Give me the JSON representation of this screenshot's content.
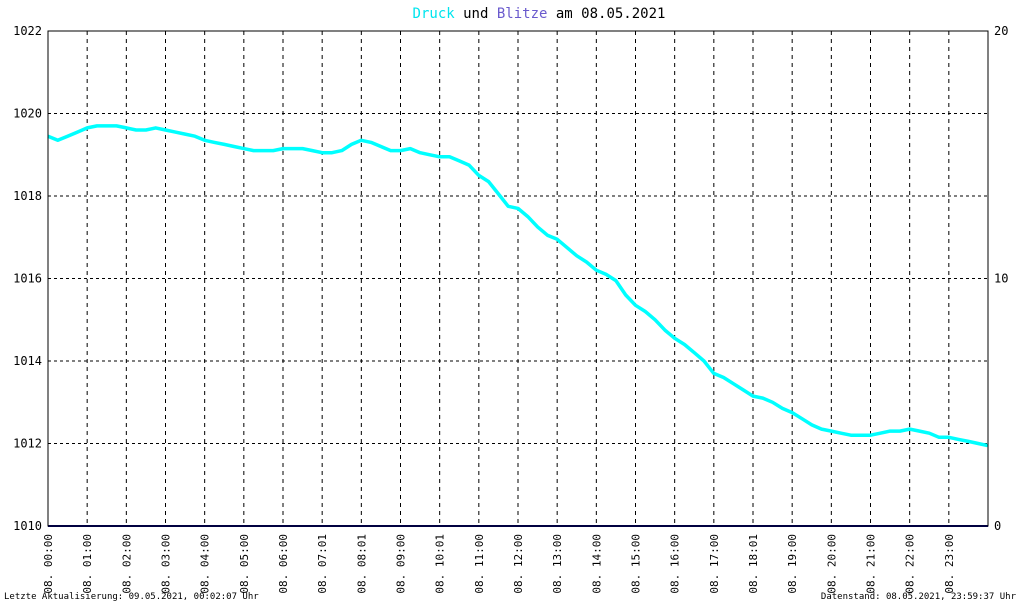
{
  "title": {
    "part1": "Druck",
    "part2": " und ",
    "part3": "Blitze",
    "part4": " am 08.05.2021"
  },
  "colors": {
    "pressure": "#00ffff",
    "lightning": "#6a5acd",
    "baseline": "#000080",
    "grid": "#000000",
    "text": "#000000",
    "background": "#ffffff"
  },
  "footer": {
    "left": "Letzte Aktualisierung: 09.05.2021, 00:02:07 Uhr",
    "right": "Datenstand: 08.05.2021, 23:59:37 Uhr"
  },
  "chart_data": {
    "type": "line",
    "title": "Druck und Blitze am 08.05.2021",
    "ylim": [
      1010,
      1022
    ],
    "ylim_right": [
      0,
      20
    ],
    "y_ticks": [
      "1010",
      "1012",
      "1014",
      "1016",
      "1018",
      "1020",
      "1022"
    ],
    "y_ticks_right": [
      "0",
      "10",
      "20"
    ],
    "x_range_hours": [
      0,
      24
    ],
    "x_ticks": [
      {
        "h": 0,
        "label": "08. 00:00"
      },
      {
        "h": 1,
        "label": "08. 01:00"
      },
      {
        "h": 2,
        "label": "08. 02:00"
      },
      {
        "h": 3,
        "label": "08. 03:00"
      },
      {
        "h": 4,
        "label": "08. 04:00"
      },
      {
        "h": 5,
        "label": "08. 05:00"
      },
      {
        "h": 6,
        "label": "08. 06:00"
      },
      {
        "h": 7,
        "label": "08. 07:01"
      },
      {
        "h": 8,
        "label": "08. 08:01"
      },
      {
        "h": 9,
        "label": "08. 09:00"
      },
      {
        "h": 10,
        "label": "08. 10:01"
      },
      {
        "h": 11,
        "label": "08. 11:00"
      },
      {
        "h": 12,
        "label": "08. 12:00"
      },
      {
        "h": 13,
        "label": "08. 13:00"
      },
      {
        "h": 14,
        "label": "08. 14:00"
      },
      {
        "h": 15,
        "label": "08. 15:00"
      },
      {
        "h": 16,
        "label": "08. 16:00"
      },
      {
        "h": 17,
        "label": "08. 17:00"
      },
      {
        "h": 18,
        "label": "08. 18:01"
      },
      {
        "h": 19,
        "label": "08. 19:00"
      },
      {
        "h": 20,
        "label": "08. 20:00"
      },
      {
        "h": 21,
        "label": "08. 21:00"
      },
      {
        "h": 22,
        "label": "08. 22:00"
      },
      {
        "h": 23,
        "label": "08. 23:00"
      }
    ],
    "grid": true,
    "series": [
      {
        "name": "Druck",
        "axis": "left",
        "x": [
          0,
          0.25,
          0.5,
          0.75,
          1,
          1.25,
          1.5,
          1.75,
          2,
          2.25,
          2.5,
          2.75,
          3,
          3.25,
          3.5,
          3.75,
          4,
          4.25,
          4.5,
          4.75,
          5,
          5.25,
          5.5,
          5.75,
          6,
          6.25,
          6.5,
          6.75,
          7,
          7.25,
          7.5,
          7.75,
          8,
          8.25,
          8.5,
          8.75,
          9,
          9.25,
          9.5,
          9.75,
          10,
          10.25,
          10.5,
          10.75,
          11,
          11.25,
          11.5,
          11.75,
          12,
          12.25,
          12.5,
          12.75,
          13,
          13.25,
          13.5,
          13.75,
          14,
          14.25,
          14.5,
          14.75,
          15,
          15.25,
          15.5,
          15.75,
          16,
          16.25,
          16.5,
          16.75,
          17,
          17.25,
          17.5,
          17.75,
          18,
          18.25,
          18.5,
          18.75,
          19,
          19.25,
          19.5,
          19.75,
          20,
          20.25,
          20.5,
          20.75,
          21,
          21.25,
          21.5,
          21.75,
          22,
          22.25,
          22.5,
          22.75,
          23,
          23.25,
          23.5,
          23.75,
          23.99
        ],
        "y": [
          1019.45,
          1019.35,
          1019.45,
          1019.55,
          1019.65,
          1019.7,
          1019.7,
          1019.7,
          1019.65,
          1019.6,
          1019.6,
          1019.65,
          1019.6,
          1019.55,
          1019.5,
          1019.45,
          1019.35,
          1019.3,
          1019.25,
          1019.2,
          1019.15,
          1019.1,
          1019.1,
          1019.1,
          1019.15,
          1019.15,
          1019.15,
          1019.1,
          1019.05,
          1019.05,
          1019.1,
          1019.25,
          1019.35,
          1019.3,
          1019.2,
          1019.1,
          1019.1,
          1019.15,
          1019.05,
          1019.0,
          1018.95,
          1018.95,
          1018.85,
          1018.75,
          1018.5,
          1018.35,
          1018.05,
          1017.75,
          1017.7,
          1017.5,
          1017.25,
          1017.05,
          1016.95,
          1016.75,
          1016.55,
          1016.4,
          1016.2,
          1016.1,
          1015.95,
          1015.6,
          1015.35,
          1015.2,
          1015.0,
          1014.75,
          1014.55,
          1014.4,
          1014.2,
          1014.0,
          1013.7,
          1013.6,
          1013.45,
          1013.3,
          1013.15,
          1013.1,
          1013.0,
          1012.85,
          1012.75,
          1012.6,
          1012.45,
          1012.35,
          1012.3,
          1012.25,
          1012.2,
          1012.2,
          1012.2,
          1012.25,
          1012.3,
          1012.3,
          1012.35,
          1012.3,
          1012.25,
          1012.15,
          1012.15,
          1012.1,
          1012.05,
          1012.0,
          1011.95
        ]
      },
      {
        "name": "Blitze",
        "axis": "right",
        "x": [
          0,
          24
        ],
        "y": [
          0,
          0
        ]
      }
    ]
  }
}
